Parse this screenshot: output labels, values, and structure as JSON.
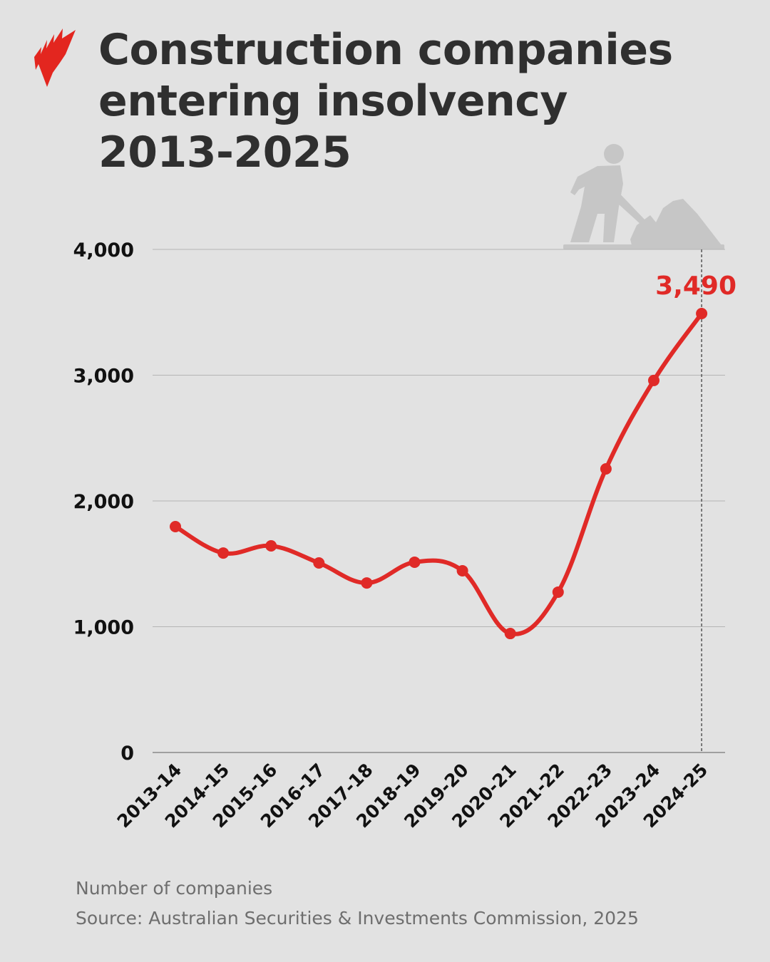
{
  "header": {
    "title_lines": [
      "Construction companies",
      "entering insolvency",
      "2013-2025"
    ],
    "logo_icon": "sbs-brand-logo",
    "decoration_icon": "worker-shovelling-icon"
  },
  "footer": {
    "units_note": "Number of companies",
    "source": "Source: Australian Securities & Investments Commission, 2025"
  },
  "colors": {
    "background": "#e2e2e2",
    "line": "#e02a27",
    "title": "#2f2f2f",
    "axis_labels": "#111111",
    "gridline": "#b4b4b4",
    "footnote": "#6e6e6e",
    "illustration": "#c6c6c6"
  },
  "chart_data": {
    "type": "line",
    "title": "Construction companies entering insolvency 2013-2025",
    "xlabel": "",
    "ylabel": "Number of companies",
    "categories": [
      "2013-14",
      "2014-15",
      "2015-16",
      "2016-17",
      "2017-18",
      "2018-19",
      "2019-20",
      "2020-21",
      "2021-22",
      "2022-23",
      "2023-24",
      "2024-25"
    ],
    "series": [
      {
        "name": "Construction companies entering insolvency",
        "values": [
          1796,
          1586,
          1643,
          1507,
          1348,
          1513,
          1445,
          946,
          1275,
          2255,
          2958,
          3490
        ]
      }
    ],
    "ylim": [
      0,
      4000
    ],
    "yticks": [
      0,
      1000,
      2000,
      3000,
      4000
    ],
    "ytick_labels": [
      "0",
      "1,000",
      "2,000",
      "3,000",
      "4,000"
    ],
    "grid": true,
    "legend": "none",
    "annotations": [
      {
        "category": "2024-25",
        "label": "3,490",
        "style": "dashed vertical marker"
      }
    ],
    "source": "Australian Securities & Investments Commission, 2025"
  }
}
